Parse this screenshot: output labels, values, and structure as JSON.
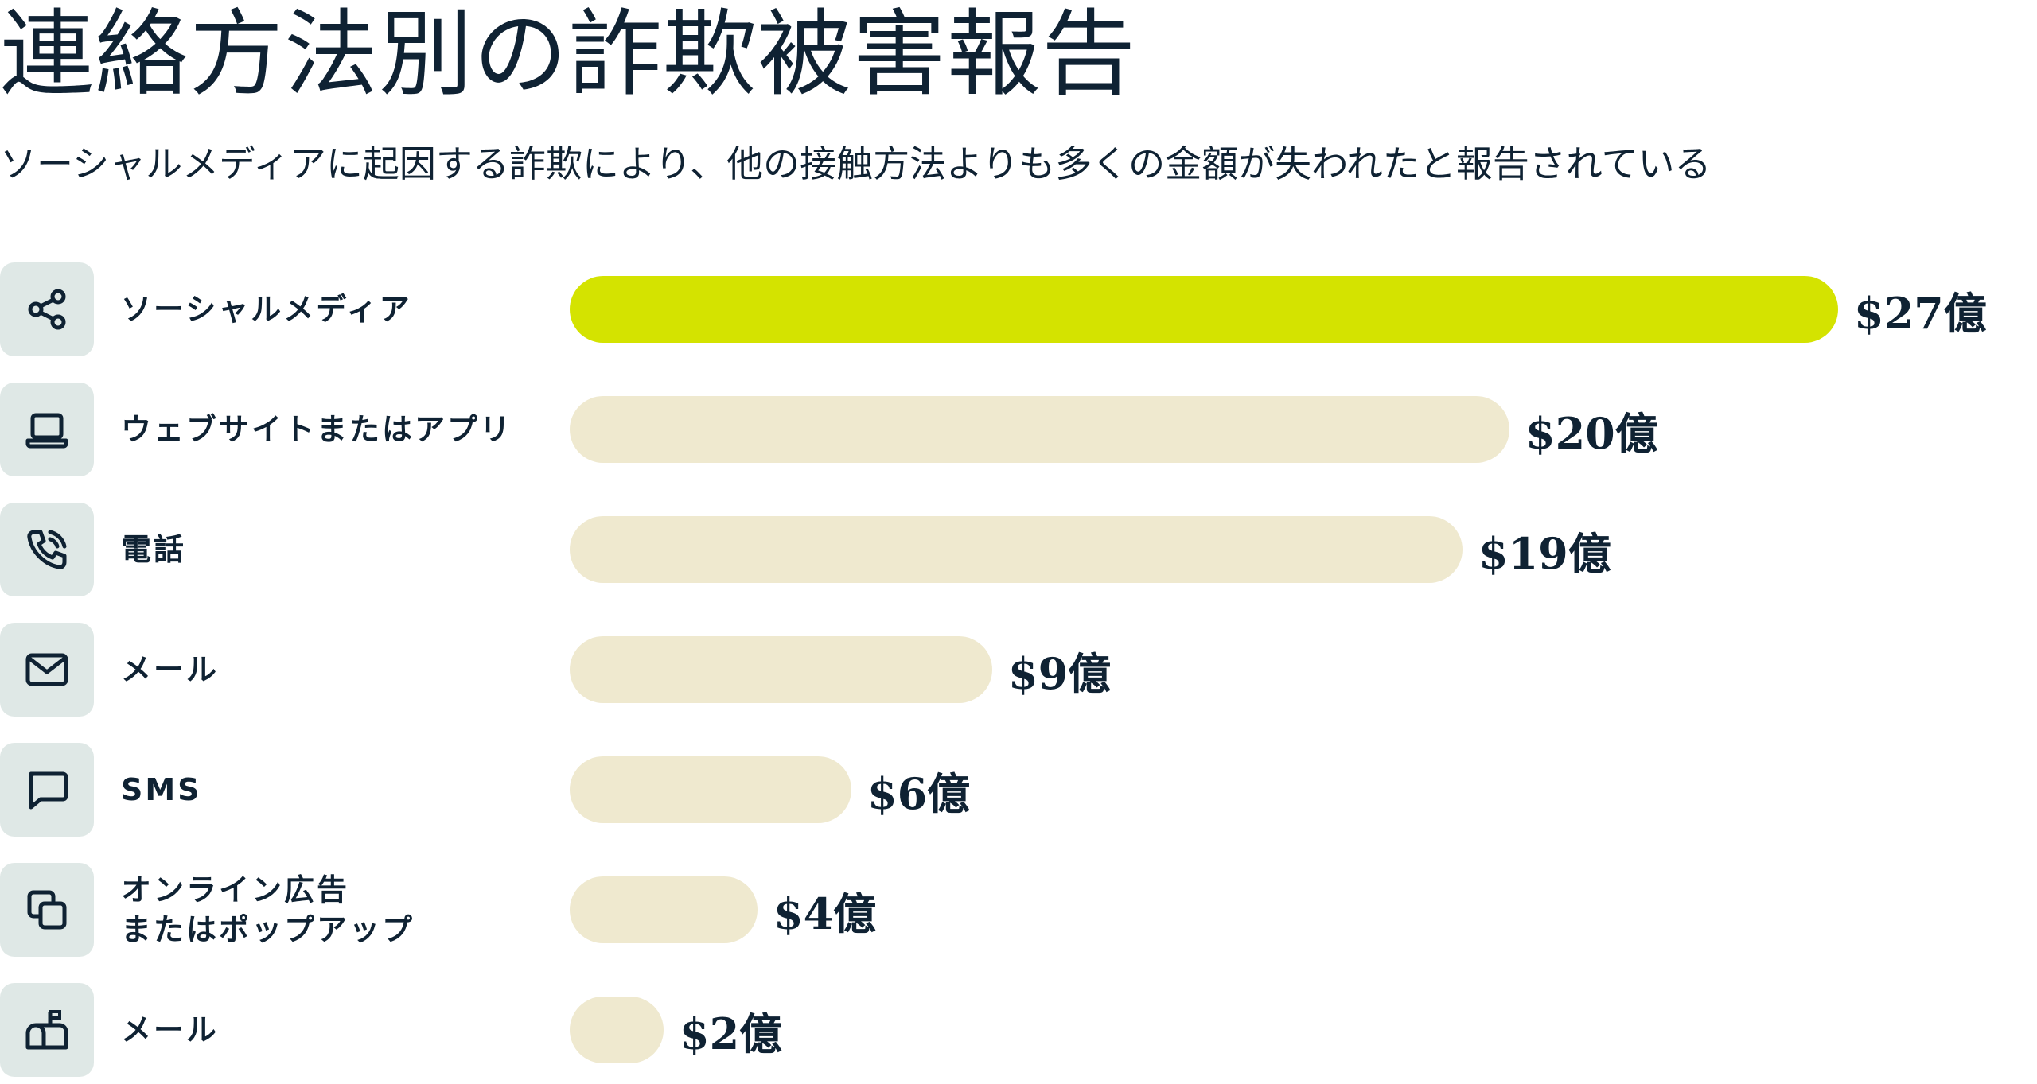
{
  "title": "連絡方法別の詐欺被害報告",
  "subtitle": "ソーシャルメディアに起因する詐欺により、他の接触方法よりも多くの金額が失われたと報告されている",
  "colors": {
    "highlight_bar": "#d4e300",
    "default_bar": "#efe9cf",
    "icon_tile": "#dfe8e6",
    "text": "#0f2233"
  },
  "chart_data": {
    "type": "bar",
    "orientation": "horizontal",
    "title": "連絡方法別の詐欺被害報告",
    "subtitle": "ソーシャルメディアに起因する詐欺により、他の接触方法よりも多くの金額が失われたと報告されている",
    "categories": [
      "ソーシャルメディア",
      "ウェブサイトまたはアプリ",
      "電話",
      "メール",
      "SMS",
      "オンライン広告\nまたはポップアップ",
      "メール"
    ],
    "values": [
      27,
      20,
      19,
      9,
      6,
      4,
      2
    ],
    "value_labels": [
      "$27億",
      "$20億",
      "$19億",
      "$9億",
      "$6億",
      "$4億",
      "$2億"
    ],
    "icons": [
      "share-icon",
      "laptop-icon",
      "phone-icon",
      "envelope-icon",
      "chat-bubble-icon",
      "popup-windows-icon",
      "mailbox-icon"
    ],
    "highlight_index": 0,
    "xlim": [
      0,
      27
    ],
    "grid": false,
    "legend": "none"
  }
}
